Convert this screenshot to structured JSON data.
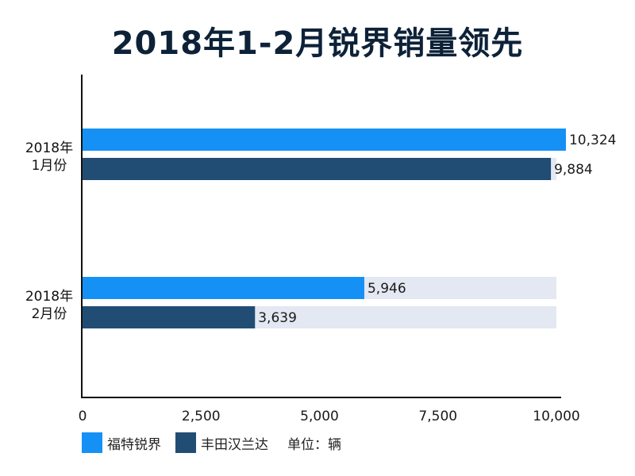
{
  "title": "2018年1-2月锐界销量领先",
  "unit_label": "单位：辆",
  "colors": {
    "series_1": "#1591f5",
    "series_2": "#214d74",
    "track": "#e3e8f2",
    "axis": "#111111",
    "title": "#0d2238"
  },
  "chart_data": {
    "type": "bar",
    "orientation": "horizontal",
    "title": "2018年1-2月锐界销量领先",
    "categories": [
      [
        "2018年",
        "1月份"
      ],
      [
        "2018年",
        "2月份"
      ]
    ],
    "series": [
      {
        "name": "福特锐界",
        "values": [
          10324,
          5946
        ],
        "value_labels": [
          "10,324",
          "5,946"
        ]
      },
      {
        "name": "丰田汉兰达",
        "values": [
          9884,
          3639
        ],
        "value_labels": [
          "9,884",
          "3,639"
        ]
      }
    ],
    "track_max": 10000,
    "xlim": [
      0,
      10000
    ],
    "xticks": [
      0,
      2500,
      5000,
      7500,
      10000
    ],
    "xtick_labels": [
      "0",
      "2,500",
      "5,000",
      "7,500",
      "10,000"
    ],
    "legend_position": "bottom-left",
    "grid": false
  }
}
